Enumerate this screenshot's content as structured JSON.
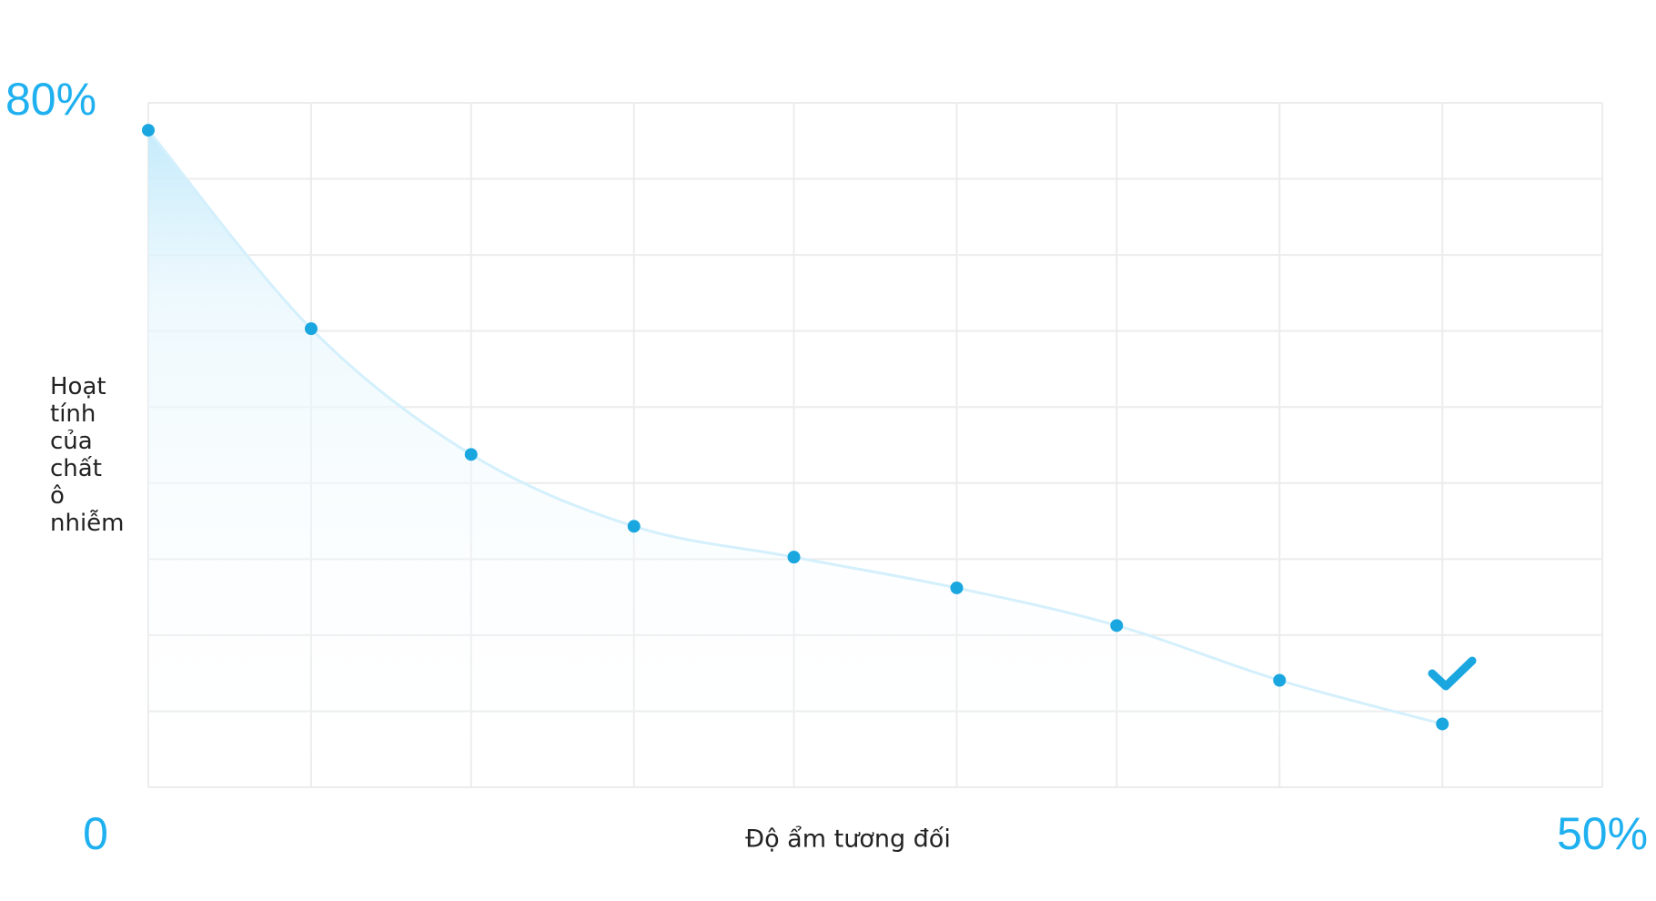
{
  "chart_data": {
    "type": "line",
    "y_label": "Hoạt tính của chất ô nhiễm",
    "x_label": "Độ ẩm tương đối",
    "x": [
      0,
      5.6,
      11.1,
      16.7,
      22.2,
      27.8,
      33.3,
      38.9,
      44.5
    ],
    "series": [
      {
        "color": "#1aa7e0",
        "values": [
          76.8,
          53.6,
          38.9,
          30.5,
          26.9,
          23.3,
          18.9,
          12.5,
          7.4
        ]
      }
    ],
    "xlim": [
      0,
      50
    ],
    "ylim": [
      0,
      80
    ],
    "xticks": [
      {
        "value": 0,
        "label": "0"
      },
      {
        "value": 50,
        "label": "50%"
      }
    ],
    "yticks": [
      {
        "value": 80,
        "label": "80%"
      }
    ],
    "grid": true
  }
}
